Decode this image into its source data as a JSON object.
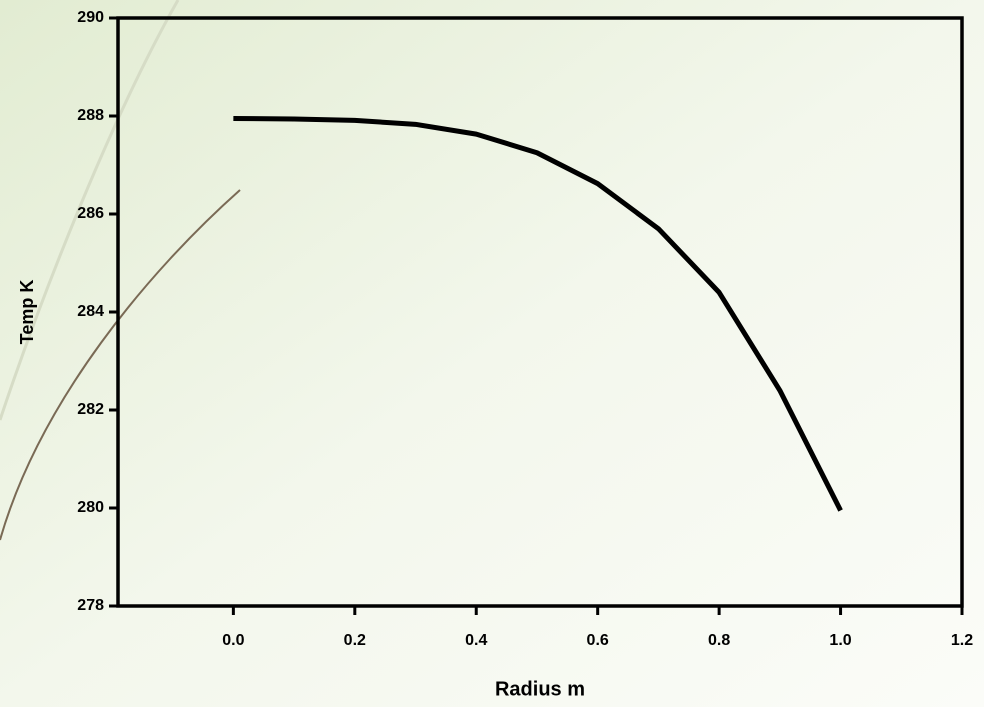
{
  "chart_data": {
    "type": "line",
    "x_label": "Radius m",
    "y_label": "Temp K",
    "x": [
      0,
      0.1,
      0.2,
      0.3,
      0.4,
      0.5,
      0.6,
      0.7,
      0.8,
      0.9,
      1.0
    ],
    "series": [
      {
        "color": "#000000",
        "values": [
          287.95,
          287.94,
          287.91,
          287.83,
          287.63,
          287.25,
          286.62,
          285.7,
          284.4,
          282.4,
          279.95
        ]
      }
    ],
    "xlim": [
      -0.19,
      1.2
    ],
    "xticks": [
      {
        "value": 0,
        "label": "0.0"
      },
      {
        "value": 0.2,
        "label": "0.2"
      },
      {
        "value": 0.4,
        "label": "0.4"
      },
      {
        "value": 0.6,
        "label": "0.6"
      },
      {
        "value": 0.8,
        "label": "0.8"
      },
      {
        "value": 1.0,
        "label": "1.0"
      },
      {
        "value": 1.2,
        "label": "1.2"
      }
    ],
    "ylim": [
      278,
      290
    ],
    "yticks": [
      278,
      280,
      282,
      284,
      286,
      288,
      290
    ]
  }
}
